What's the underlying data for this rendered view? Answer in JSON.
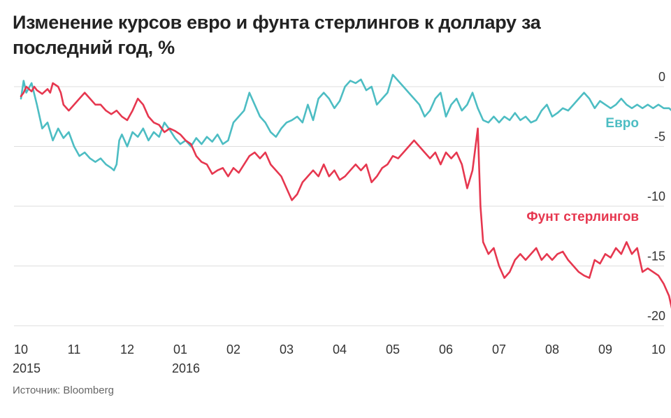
{
  "title": "Изменение курсов евро и фунта стерлингов к доллару за последний год, %",
  "source": "Источник: Bloomberg",
  "chart_data": {
    "type": "line",
    "ylim": [
      -20,
      0
    ],
    "y_ticks": [
      "0",
      "-5",
      "-10",
      "-15",
      "-20"
    ],
    "y_tick_values": [
      0,
      -5,
      -10,
      -15,
      -20
    ],
    "grid": true,
    "x_ticks": [
      {
        "label": "10",
        "year": "2015"
      },
      {
        "label": "11",
        "year": ""
      },
      {
        "label": "12",
        "year": ""
      },
      {
        "label": "01",
        "year": "2016"
      },
      {
        "label": "02",
        "year": ""
      },
      {
        "label": "03",
        "year": ""
      },
      {
        "label": "04",
        "year": ""
      },
      {
        "label": "05",
        "year": ""
      },
      {
        "label": "06",
        "year": ""
      },
      {
        "label": "07",
        "year": ""
      },
      {
        "label": "08",
        "year": ""
      },
      {
        "label": "09",
        "year": ""
      },
      {
        "label": "10",
        "year": ""
      }
    ],
    "x_tick_months": [
      0,
      1,
      2,
      3,
      4,
      5,
      6,
      7,
      8,
      9,
      10,
      11,
      12
    ],
    "x_domain": [
      0,
      12.4
    ],
    "series": [
      {
        "name": "Евро",
        "color": "#4dbdc3",
        "points": [
          [
            0,
            -1
          ],
          [
            0.05,
            0.5
          ],
          [
            0.1,
            -0.5
          ],
          [
            0.2,
            0.3
          ],
          [
            0.3,
            -1.5
          ],
          [
            0.4,
            -3.5
          ],
          [
            0.5,
            -3.0
          ],
          [
            0.6,
            -4.5
          ],
          [
            0.7,
            -3.5
          ],
          [
            0.8,
            -4.3
          ],
          [
            0.9,
            -3.8
          ],
          [
            1.0,
            -5.0
          ],
          [
            1.1,
            -5.8
          ],
          [
            1.2,
            -5.5
          ],
          [
            1.3,
            -6.0
          ],
          [
            1.4,
            -6.3
          ],
          [
            1.5,
            -6.0
          ],
          [
            1.6,
            -6.5
          ],
          [
            1.7,
            -6.8
          ],
          [
            1.75,
            -7.0
          ],
          [
            1.8,
            -6.5
          ],
          [
            1.85,
            -4.5
          ],
          [
            1.9,
            -4.0
          ],
          [
            2.0,
            -5.0
          ],
          [
            2.1,
            -3.8
          ],
          [
            2.2,
            -4.2
          ],
          [
            2.3,
            -3.5
          ],
          [
            2.4,
            -4.5
          ],
          [
            2.5,
            -3.8
          ],
          [
            2.6,
            -4.2
          ],
          [
            2.7,
            -3.0
          ],
          [
            2.8,
            -3.6
          ],
          [
            2.9,
            -4.3
          ],
          [
            3.0,
            -4.8
          ],
          [
            3.1,
            -4.5
          ],
          [
            3.2,
            -5.0
          ],
          [
            3.3,
            -4.3
          ],
          [
            3.4,
            -4.8
          ],
          [
            3.5,
            -4.2
          ],
          [
            3.6,
            -4.6
          ],
          [
            3.7,
            -4.0
          ],
          [
            3.8,
            -4.8
          ],
          [
            3.9,
            -4.5
          ],
          [
            4.0,
            -3.0
          ],
          [
            4.1,
            -2.5
          ],
          [
            4.2,
            -2.0
          ],
          [
            4.3,
            -0.5
          ],
          [
            4.4,
            -1.5
          ],
          [
            4.5,
            -2.5
          ],
          [
            4.6,
            -3.0
          ],
          [
            4.7,
            -3.8
          ],
          [
            4.8,
            -4.2
          ],
          [
            4.9,
            -3.5
          ],
          [
            5.0,
            -3.0
          ],
          [
            5.1,
            -2.8
          ],
          [
            5.2,
            -2.5
          ],
          [
            5.3,
            -3.0
          ],
          [
            5.4,
            -1.5
          ],
          [
            5.5,
            -2.8
          ],
          [
            5.6,
            -1.0
          ],
          [
            5.7,
            -0.5
          ],
          [
            5.8,
            -1.0
          ],
          [
            5.9,
            -1.8
          ],
          [
            6.0,
            -1.2
          ],
          [
            6.1,
            0.0
          ],
          [
            6.2,
            0.5
          ],
          [
            6.3,
            0.3
          ],
          [
            6.4,
            0.6
          ],
          [
            6.5,
            -0.3
          ],
          [
            6.6,
            0.0
          ],
          [
            6.7,
            -1.5
          ],
          [
            6.8,
            -1.0
          ],
          [
            6.9,
            -0.5
          ],
          [
            7.0,
            1.0
          ],
          [
            7.1,
            0.5
          ],
          [
            7.2,
            0.0
          ],
          [
            7.3,
            -0.5
          ],
          [
            7.4,
            -1.0
          ],
          [
            7.5,
            -1.5
          ],
          [
            7.6,
            -2.5
          ],
          [
            7.7,
            -2.0
          ],
          [
            7.8,
            -1.0
          ],
          [
            7.9,
            -0.5
          ],
          [
            8.0,
            -2.5
          ],
          [
            8.1,
            -1.5
          ],
          [
            8.2,
            -1.0
          ],
          [
            8.3,
            -2.0
          ],
          [
            8.4,
            -1.5
          ],
          [
            8.5,
            -0.5
          ],
          [
            8.6,
            -1.8
          ],
          [
            8.7,
            -2.8
          ],
          [
            8.8,
            -3.0
          ],
          [
            8.9,
            -2.5
          ],
          [
            9.0,
            -3.0
          ],
          [
            9.1,
            -2.5
          ],
          [
            9.2,
            -2.8
          ],
          [
            9.3,
            -2.2
          ],
          [
            9.4,
            -2.8
          ],
          [
            9.5,
            -2.5
          ],
          [
            9.6,
            -3.0
          ],
          [
            9.7,
            -2.8
          ],
          [
            9.8,
            -2.0
          ],
          [
            9.9,
            -1.5
          ],
          [
            10.0,
            -2.5
          ],
          [
            10.1,
            -2.2
          ],
          [
            10.2,
            -1.8
          ],
          [
            10.3,
            -2.0
          ],
          [
            10.4,
            -1.5
          ],
          [
            10.5,
            -1.0
          ],
          [
            10.6,
            -0.5
          ],
          [
            10.7,
            -1.0
          ],
          [
            10.8,
            -1.8
          ],
          [
            10.9,
            -1.2
          ],
          [
            11.0,
            -1.5
          ],
          [
            11.1,
            -1.8
          ],
          [
            11.2,
            -1.5
          ],
          [
            11.3,
            -1.0
          ],
          [
            11.4,
            -1.5
          ],
          [
            11.5,
            -1.8
          ],
          [
            11.6,
            -1.5
          ],
          [
            11.7,
            -1.8
          ],
          [
            11.8,
            -1.5
          ],
          [
            11.9,
            -1.8
          ],
          [
            12.0,
            -1.5
          ],
          [
            12.1,
            -1.8
          ],
          [
            12.2,
            -1.8
          ],
          [
            12.3,
            -2.2
          ]
        ]
      },
      {
        "name": "Фунт стерлингов",
        "color": "#e6374f",
        "points": [
          [
            0,
            -0.8
          ],
          [
            0.05,
            -0.5
          ],
          [
            0.1,
            0.0
          ],
          [
            0.15,
            -0.2
          ],
          [
            0.2,
            -0.4
          ],
          [
            0.25,
            0.0
          ],
          [
            0.3,
            -0.3
          ],
          [
            0.4,
            -0.6
          ],
          [
            0.5,
            -0.2
          ],
          [
            0.55,
            -0.5
          ],
          [
            0.6,
            0.3
          ],
          [
            0.7,
            0.0
          ],
          [
            0.75,
            -0.5
          ],
          [
            0.8,
            -1.5
          ],
          [
            0.9,
            -2.0
          ],
          [
            1.0,
            -1.5
          ],
          [
            1.1,
            -1.0
          ],
          [
            1.2,
            -0.5
          ],
          [
            1.3,
            -1.0
          ],
          [
            1.4,
            -1.5
          ],
          [
            1.5,
            -1.5
          ],
          [
            1.6,
            -2.0
          ],
          [
            1.7,
            -2.3
          ],
          [
            1.8,
            -2.0
          ],
          [
            1.9,
            -2.5
          ],
          [
            2.0,
            -2.8
          ],
          [
            2.1,
            -2.0
          ],
          [
            2.2,
            -1.0
          ],
          [
            2.3,
            -1.5
          ],
          [
            2.4,
            -2.5
          ],
          [
            2.5,
            -3.0
          ],
          [
            2.6,
            -3.2
          ],
          [
            2.7,
            -3.8
          ],
          [
            2.8,
            -3.5
          ],
          [
            2.9,
            -3.7
          ],
          [
            3.0,
            -4.0
          ],
          [
            3.1,
            -4.5
          ],
          [
            3.2,
            -4.8
          ],
          [
            3.3,
            -5.8
          ],
          [
            3.4,
            -6.3
          ],
          [
            3.5,
            -6.5
          ],
          [
            3.6,
            -7.3
          ],
          [
            3.7,
            -7.0
          ],
          [
            3.8,
            -6.8
          ],
          [
            3.9,
            -7.5
          ],
          [
            4.0,
            -6.8
          ],
          [
            4.1,
            -7.2
          ],
          [
            4.2,
            -6.5
          ],
          [
            4.3,
            -5.8
          ],
          [
            4.4,
            -5.5
          ],
          [
            4.5,
            -6.0
          ],
          [
            4.6,
            -5.5
          ],
          [
            4.7,
            -6.5
          ],
          [
            4.8,
            -7.0
          ],
          [
            4.9,
            -7.5
          ],
          [
            5.0,
            -8.5
          ],
          [
            5.1,
            -9.5
          ],
          [
            5.2,
            -9.0
          ],
          [
            5.3,
            -8.0
          ],
          [
            5.4,
            -7.5
          ],
          [
            5.5,
            -7.0
          ],
          [
            5.6,
            -7.5
          ],
          [
            5.7,
            -6.5
          ],
          [
            5.8,
            -7.5
          ],
          [
            5.9,
            -7.0
          ],
          [
            6.0,
            -7.8
          ],
          [
            6.1,
            -7.5
          ],
          [
            6.2,
            -7.0
          ],
          [
            6.3,
            -6.5
          ],
          [
            6.4,
            -7.0
          ],
          [
            6.5,
            -6.5
          ],
          [
            6.6,
            -8.0
          ],
          [
            6.7,
            -7.5
          ],
          [
            6.8,
            -6.8
          ],
          [
            6.9,
            -6.5
          ],
          [
            7.0,
            -5.8
          ],
          [
            7.1,
            -6.0
          ],
          [
            7.2,
            -5.5
          ],
          [
            7.3,
            -5.0
          ],
          [
            7.4,
            -4.5
          ],
          [
            7.5,
            -5.0
          ],
          [
            7.6,
            -5.5
          ],
          [
            7.7,
            -6.0
          ],
          [
            7.8,
            -5.5
          ],
          [
            7.9,
            -6.5
          ],
          [
            8.0,
            -5.5
          ],
          [
            8.1,
            -6.0
          ],
          [
            8.2,
            -5.5
          ],
          [
            8.3,
            -6.5
          ],
          [
            8.4,
            -8.5
          ],
          [
            8.5,
            -7.0
          ],
          [
            8.6,
            -3.5
          ],
          [
            8.65,
            -10.0
          ],
          [
            8.7,
            -13.0
          ],
          [
            8.8,
            -14.0
          ],
          [
            8.9,
            -13.5
          ],
          [
            9.0,
            -15.0
          ],
          [
            9.1,
            -16.0
          ],
          [
            9.2,
            -15.5
          ],
          [
            9.3,
            -14.5
          ],
          [
            9.4,
            -14.0
          ],
          [
            9.5,
            -14.5
          ],
          [
            9.6,
            -14.0
          ],
          [
            9.7,
            -13.5
          ],
          [
            9.8,
            -14.5
          ],
          [
            9.9,
            -14.0
          ],
          [
            10.0,
            -14.5
          ],
          [
            10.1,
            -14.0
          ],
          [
            10.2,
            -13.8
          ],
          [
            10.3,
            -14.5
          ],
          [
            10.4,
            -15.0
          ],
          [
            10.5,
            -15.5
          ],
          [
            10.6,
            -15.8
          ],
          [
            10.7,
            -16.0
          ],
          [
            10.8,
            -14.5
          ],
          [
            10.9,
            -14.8
          ],
          [
            11.0,
            -14.0
          ],
          [
            11.1,
            -14.3
          ],
          [
            11.2,
            -13.5
          ],
          [
            11.3,
            -14.0
          ],
          [
            11.4,
            -13.0
          ],
          [
            11.5,
            -14.0
          ],
          [
            11.6,
            -13.5
          ],
          [
            11.7,
            -15.5
          ],
          [
            11.8,
            -15.2
          ],
          [
            11.9,
            -15.5
          ],
          [
            12.0,
            -15.8
          ],
          [
            12.1,
            -16.5
          ],
          [
            12.2,
            -17.5
          ],
          [
            12.3,
            -19.5
          ],
          [
            12.4,
            -19.8
          ]
        ]
      }
    ]
  }
}
